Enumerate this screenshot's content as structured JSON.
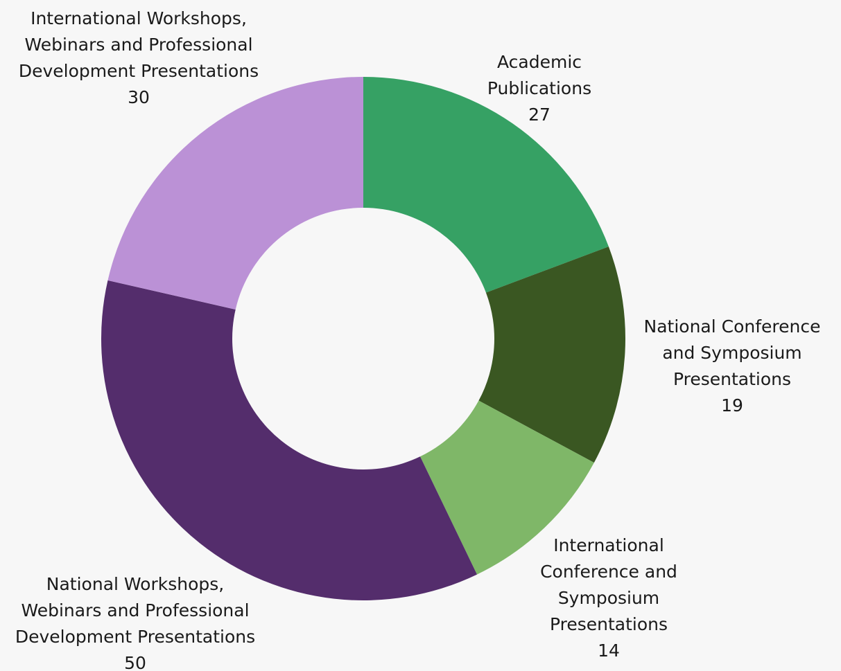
{
  "chart_data": {
    "type": "pie",
    "variant": "donut",
    "title": "",
    "slices": [
      {
        "label_lines": [
          "Academic",
          "Publications"
        ],
        "value": 27,
        "value_text": "27",
        "color": "#36a164"
      },
      {
        "label_lines": [
          "National Conference",
          "and Symposium",
          "Presentations"
        ],
        "value": 19,
        "value_text": "19",
        "color": "#3a5722"
      },
      {
        "label_lines": [
          "International",
          "Conference and",
          "Symposium",
          "Presentations"
        ],
        "value": 14,
        "value_text": "14",
        "color": "#7fb768"
      },
      {
        "label_lines": [
          "National Workshops,",
          "Webinars and Professional",
          "Development Presentations"
        ],
        "value": 50,
        "value_text": "50",
        "color": "#542d6c"
      },
      {
        "label_lines": [
          "International Workshops,",
          "Webinars and Professional",
          "Development Presentations"
        ],
        "value": 30,
        "value_text": "30",
        "color": "#bb91d6"
      }
    ],
    "start_angle_deg": 0,
    "direction": "clockwise",
    "legend": "none",
    "background": "#f7f7f7"
  }
}
